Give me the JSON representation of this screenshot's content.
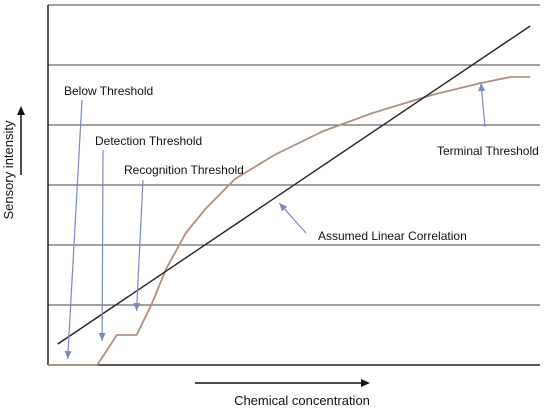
{
  "chart_data": {
    "type": "line",
    "xlabel": "Chemical concentration",
    "ylabel": "Sensory intensity",
    "xlim": [
      0,
      100
    ],
    "ylim": [
      0,
      6
    ],
    "grid": true,
    "ticks_labeled": false,
    "series": [
      {
        "color": "#b09080",
        "x": [
          0,
          10,
          14,
          18,
          21,
          24,
          28,
          32,
          38,
          46,
          56,
          66,
          78,
          88,
          94,
          98
        ],
        "y": [
          0,
          0,
          0.5,
          0.5,
          1.0,
          1.6,
          2.2,
          2.6,
          3.1,
          3.5,
          3.9,
          4.2,
          4.5,
          4.7,
          4.8,
          4.8
        ]
      },
      {
        "color": "#222222",
        "x": [
          2,
          98
        ],
        "y": [
          0.35,
          5.65
        ]
      }
    ],
    "annotations": [
      {
        "text": "Below Threshold",
        "point": [
          4,
          0.1
        ],
        "arrow_direction": "down",
        "color": "#7b87c4"
      },
      {
        "text": "Detection Threshold",
        "point": [
          11,
          0.4
        ],
        "arrow_direction": "down",
        "color": "#7b87c4"
      },
      {
        "text": "Recognition Threshold",
        "point": [
          18,
          0.9
        ],
        "arrow_direction": "down",
        "color": "#7b87c4"
      },
      {
        "text": "Terminal Threshold",
        "point": [
          88,
          4.7
        ],
        "arrow_direction": "up",
        "color": "#7b87c4"
      },
      {
        "text": "Assumed Linear Correlation",
        "point": [
          47,
          2.7
        ],
        "arrow_direction": "up-left",
        "color": "#7b87c4"
      }
    ]
  },
  "colors": {
    "axis": "#222222",
    "grid": "#444444",
    "annotation": "#7b87c4"
  }
}
